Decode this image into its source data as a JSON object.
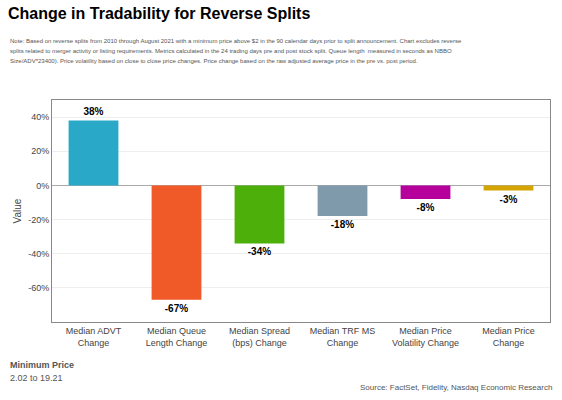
{
  "chart_data": {
    "type": "bar",
    "title": "Change in Tradability for Reverse Splits",
    "notes": [
      "Note: Based on reverse splits from 2010 through August 2021 with a minimum price above $2 in the 90 calendar days prior to split announcement. Chart excludes reverse",
      "splits related to merger activity or listing requirements. Metrics calculated in the 24 trading days pre and post stock split. Queue length  measured in seconds as NBBO",
      "Size/ADV*23400). Price volatility based on close to close price changes. Price change based on the raw adjusted average price in the pre vs. post period."
    ],
    "annotations": [
      "Minimum Price",
      "2.02 to 19.21"
    ],
    "source": "Source: FactSet, Fidelity, Nasdaq Economic Research",
    "ylabel": "Value",
    "categories": [
      "Median ADVT\nChange",
      "Median Queue\nLength Change",
      "Median Spread\n(bps) Change",
      "Median TRF MS\nChange",
      "Median Price\nVolatility Change",
      "Median Price\nChange"
    ],
    "values": [
      38,
      -67,
      -34,
      -18,
      -8,
      -3
    ],
    "value_labels": [
      "38%",
      "-67%",
      "-34%",
      "-18%",
      "-8%",
      "-3%"
    ],
    "data_labels": true,
    "colors": [
      "#29a8c8",
      "#f05a28",
      "#4caf0a",
      "#7f9aaa",
      "#b5009b",
      "#d4a500"
    ],
    "ylim": [
      -80,
      50
    ],
    "yticks": [
      {
        "value": -60,
        "label": "-60%"
      },
      {
        "value": -40,
        "label": "-40%"
      },
      {
        "value": -20,
        "label": "-20%"
      },
      {
        "value": 0,
        "label": "0%"
      },
      {
        "value": 20,
        "label": "20%"
      },
      {
        "value": 40,
        "label": "40%"
      }
    ],
    "grid": true
  }
}
